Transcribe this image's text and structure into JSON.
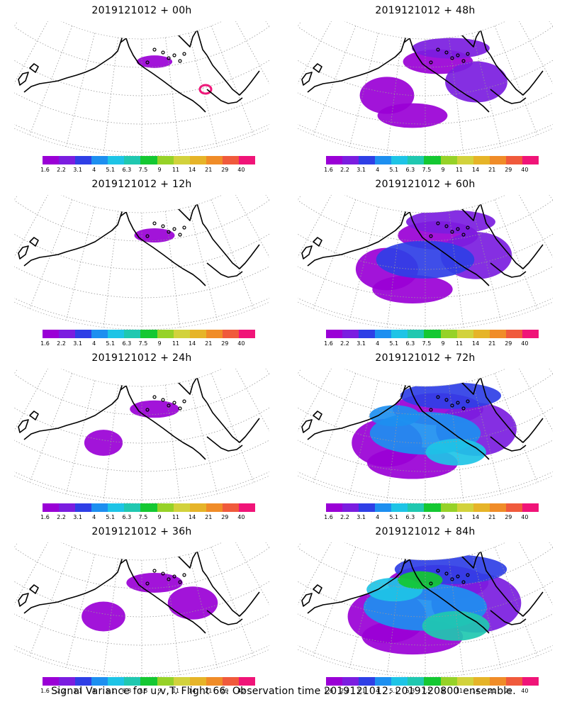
{
  "panels": [
    {
      "title": "2019121012 + 00h",
      "level": 0.05
    },
    {
      "title": "2019121012 + 48h",
      "level": 0.55
    },
    {
      "title": "2019121012 + 12h",
      "level": 0.12
    },
    {
      "title": "2019121012 + 60h",
      "level": 0.7
    },
    {
      "title": "2019121012 + 24h",
      "level": 0.25
    },
    {
      "title": "2019121012 + 72h",
      "level": 0.85
    },
    {
      "title": "2019121012 + 36h",
      "level": 0.35
    },
    {
      "title": "2019121012 + 84h",
      "level": 1.0
    }
  ],
  "colorbar": {
    "labels": [
      "1.6",
      "2.2",
      "3.1",
      "4",
      "5.1",
      "6.3",
      "7.5",
      "9",
      "11",
      "14",
      "21",
      "29",
      "40"
    ],
    "colors": [
      "#9a00d6",
      "#7b1de0",
      "#2f3fe6",
      "#1d8ff0",
      "#1ec4e6",
      "#20c8b0",
      "#14c832",
      "#96d228",
      "#d2d23c",
      "#e6b428",
      "#f08c28",
      "#f05a3c",
      "#f01478"
    ]
  },
  "footer": "Signal Variance for u,v,T. Flight 66. Observation time 2019121012. 2019120800 ensemble."
}
